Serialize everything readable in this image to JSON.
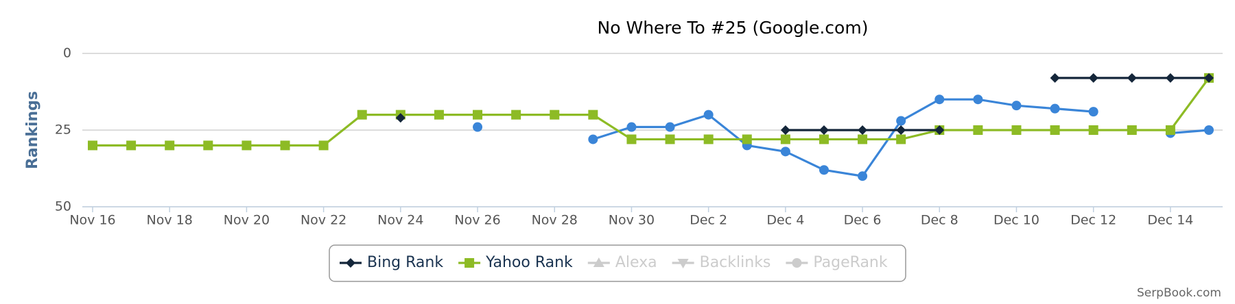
{
  "chart_data": {
    "type": "line",
    "title": "No Where To #25 (Google.com)",
    "y_label": "Rankings",
    "credit": "SerpBook.com",
    "categories": [
      "Nov 16",
      null,
      "Nov 18",
      null,
      "Nov 20",
      null,
      "Nov 22",
      null,
      "Nov 24",
      null,
      "Nov 26",
      null,
      "Nov 28",
      null,
      "Nov 30",
      null,
      "Dec 2",
      null,
      "Dec 4",
      null,
      "Dec 6",
      null,
      "Dec 8",
      null,
      "Dec 10",
      null,
      "Dec 12",
      null,
      "Dec 14",
      null
    ],
    "ylim": [
      0,
      50
    ],
    "yticks": [
      0,
      25,
      50
    ],
    "y_reversed": true,
    "grid": true,
    "series": [
      {
        "name": "Bing Rank",
        "color": "#14263a",
        "marker": "diamond",
        "legend": true,
        "values": [
          null,
          null,
          null,
          null,
          null,
          null,
          null,
          null,
          21,
          null,
          null,
          null,
          null,
          null,
          null,
          null,
          null,
          null,
          25,
          25,
          25,
          25,
          25,
          null,
          null,
          8,
          8,
          8,
          8,
          8
        ]
      },
      {
        "name": "Yahoo Rank",
        "color": "#8dbb25",
        "marker": "square",
        "legend": true,
        "values": [
          30,
          30,
          30,
          30,
          30,
          30,
          30,
          20,
          20,
          20,
          20,
          20,
          20,
          20,
          28,
          28,
          28,
          28,
          28,
          28,
          28,
          28,
          25,
          25,
          25,
          25,
          25,
          25,
          25,
          8
        ]
      },
      {
        "color": "#3a85d8",
        "marker": "circle",
        "legend": false,
        "values": [
          null,
          null,
          null,
          null,
          null,
          null,
          null,
          null,
          null,
          null,
          24,
          null,
          null,
          28,
          24,
          24,
          20,
          30,
          32,
          38,
          40,
          22,
          15,
          15,
          17,
          18,
          19,
          null,
          26,
          25
        ]
      }
    ],
    "hidden_legend": [
      "Alexa",
      "Backlinks",
      "PageRank"
    ]
  }
}
